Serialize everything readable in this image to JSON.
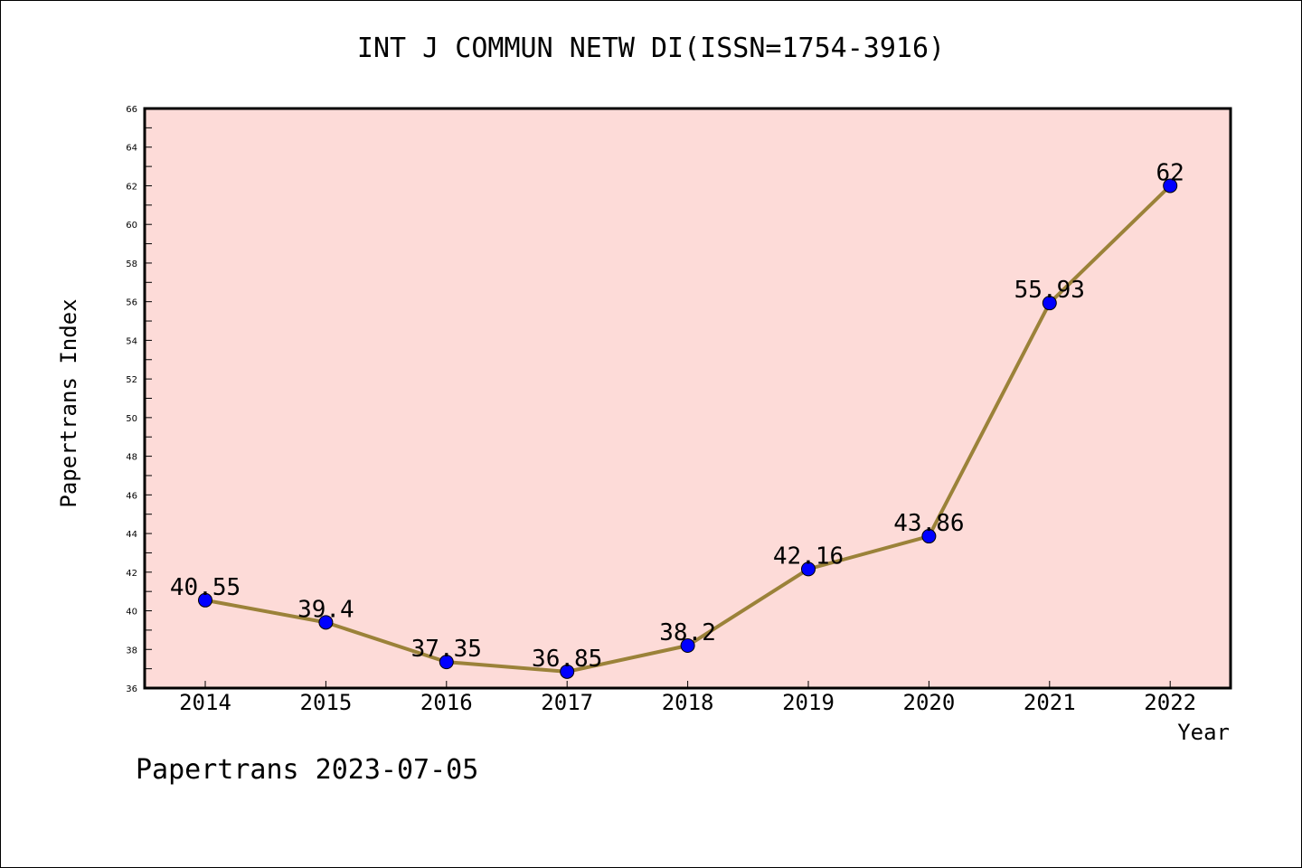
{
  "chart_data": {
    "type": "line",
    "title": "INT J COMMUN NETW DI(ISSN=1754-3916)",
    "xlabel": "Year",
    "ylabel": "Papertrans Index",
    "categories": [
      "2014",
      "2015",
      "2016",
      "2017",
      "2018",
      "2019",
      "2020",
      "2021",
      "2022"
    ],
    "series": [
      {
        "values": [
          40.55,
          39.4,
          37.35,
          36.85,
          38.2,
          42.16,
          43.86,
          55.93,
          62
        ],
        "labels": [
          "40.55",
          "39.4",
          "37.35",
          "36.85",
          "38.2",
          "42.16",
          "43.86",
          "55.93",
          "62"
        ]
      }
    ],
    "ylim": [
      36,
      66
    ],
    "yticks": [
      "36",
      "38",
      "40",
      "42",
      "44",
      "46",
      "48",
      "50",
      "52",
      "54",
      "56",
      "58",
      "60",
      "62",
      "64",
      "66"
    ],
    "grid": false,
    "colors": {
      "plot_background": "#fddbd8",
      "line": "#9b8239",
      "marker": "#0000ff",
      "axis": "#000000"
    }
  },
  "footer": {
    "credit": "Papertrans 2023-07-05"
  }
}
